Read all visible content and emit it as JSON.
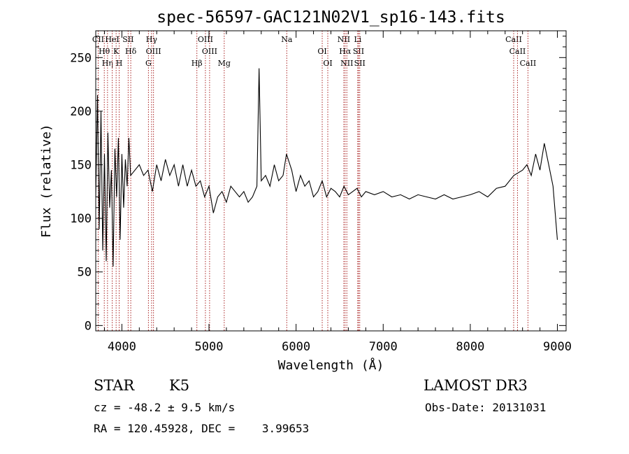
{
  "chart_data": {
    "type": "line",
    "title": "spec-56597-GAC121N02V1_sp16-143.fits",
    "xlabel": "Wavelength (Å)",
    "ylabel": "Flux (relative)",
    "xlim": [
      3700,
      9100
    ],
    "ylim": [
      -5,
      275
    ],
    "x_ticks": [
      4000,
      5000,
      6000,
      7000,
      8000,
      9000
    ],
    "y_ticks": [
      0,
      50,
      100,
      150,
      200,
      250
    ],
    "grid": false,
    "line_color": "#000000",
    "marker_color": "#aa2222",
    "series": [
      {
        "x": [
          3700,
          3720,
          3740,
          3760,
          3780,
          3800,
          3820,
          3840,
          3860,
          3880,
          3900,
          3920,
          3940,
          3960,
          3980,
          4000,
          4020,
          4040,
          4060,
          4080,
          4100,
          4150,
          4200,
          4250,
          4300,
          4350,
          4400,
          4450,
          4500,
          4550,
          4600,
          4650,
          4700,
          4750,
          4800,
          4850,
          4900,
          4950,
          5000,
          5050,
          5100,
          5150,
          5200,
          5250,
          5300,
          5350,
          5400,
          5450,
          5500,
          5550,
          5575,
          5600,
          5650,
          5700,
          5750,
          5800,
          5850,
          5890,
          5950,
          6000,
          6050,
          6100,
          6150,
          6200,
          6250,
          6300,
          6350,
          6400,
          6450,
          6500,
          6550,
          6600,
          6650,
          6700,
          6750,
          6800,
          6900,
          7000,
          7100,
          7200,
          7300,
          7400,
          7500,
          7600,
          7700,
          7800,
          7900,
          8000,
          8100,
          8200,
          8300,
          8400,
          8500,
          8600,
          8650,
          8700,
          8750,
          8800,
          8850,
          8900,
          8950,
          9000
        ],
        "y": [
          120,
          215,
          90,
          200,
          70,
          160,
          60,
          180,
          110,
          145,
          55,
          165,
          120,
          175,
          80,
          160,
          110,
          155,
          130,
          175,
          140,
          145,
          150,
          140,
          145,
          125,
          150,
          135,
          155,
          140,
          150,
          130,
          150,
          130,
          145,
          130,
          135,
          120,
          130,
          105,
          120,
          125,
          115,
          130,
          125,
          120,
          125,
          115,
          120,
          130,
          240,
          135,
          140,
          130,
          150,
          135,
          140,
          160,
          145,
          125,
          140,
          130,
          135,
          120,
          125,
          135,
          120,
          128,
          125,
          120,
          130,
          122,
          125,
          128,
          120,
          125,
          122,
          125,
          120,
          122,
          118,
          122,
          120,
          118,
          122,
          118,
          120,
          122,
          125,
          120,
          128,
          130,
          140,
          145,
          150,
          140,
          160,
          145,
          170,
          150,
          130,
          80
        ]
      }
    ],
    "lines": [
      {
        "label": "CII",
        "x": 3728
      },
      {
        "label": "Hθ",
        "x": 3798
      },
      {
        "label": "Hη",
        "x": 3835
      },
      {
        "label": "HeI",
        "x": 3889
      },
      {
        "label": "K",
        "x": 3934
      },
      {
        "label": "H",
        "x": 3969
      },
      {
        "label": "SII",
        "x": 4072
      },
      {
        "label": "Hδ",
        "x": 4102
      },
      {
        "label": "G",
        "x": 4305
      },
      {
        "label": "Hγ",
        "x": 4341
      },
      {
        "label": "OIII",
        "x": 4363
      },
      {
        "label": "Hβ",
        "x": 4861
      },
      {
        "label": "OIII",
        "x": 4959
      },
      {
        "label": "OIII",
        "x": 5007
      },
      {
        "label": "Mg",
        "x": 5175
      },
      {
        "label": "Na",
        "x": 5893
      },
      {
        "label": "OI",
        "x": 6300
      },
      {
        "label": "OI",
        "x": 6364
      },
      {
        "label": "NII",
        "x": 6548
      },
      {
        "label": "Hα",
        "x": 6563
      },
      {
        "label": "NII",
        "x": 6583
      },
      {
        "label": "Li",
        "x": 6708
      },
      {
        "label": "SII",
        "x": 6717
      },
      {
        "label": "SII",
        "x": 6731
      },
      {
        "label": "CaII",
        "x": 8498
      },
      {
        "label": "CaII",
        "x": 8542
      },
      {
        "label": "CaII",
        "x": 8662
      }
    ]
  },
  "info": {
    "object_class": "STAR",
    "subclass": "K5",
    "survey": "LAMOST DR3",
    "cz": "cz = -48.2 ± 9.5 km/s",
    "obs_date": "Obs-Date: 20131031",
    "coords": "RA = 120.45928, DEC =    3.99653"
  }
}
